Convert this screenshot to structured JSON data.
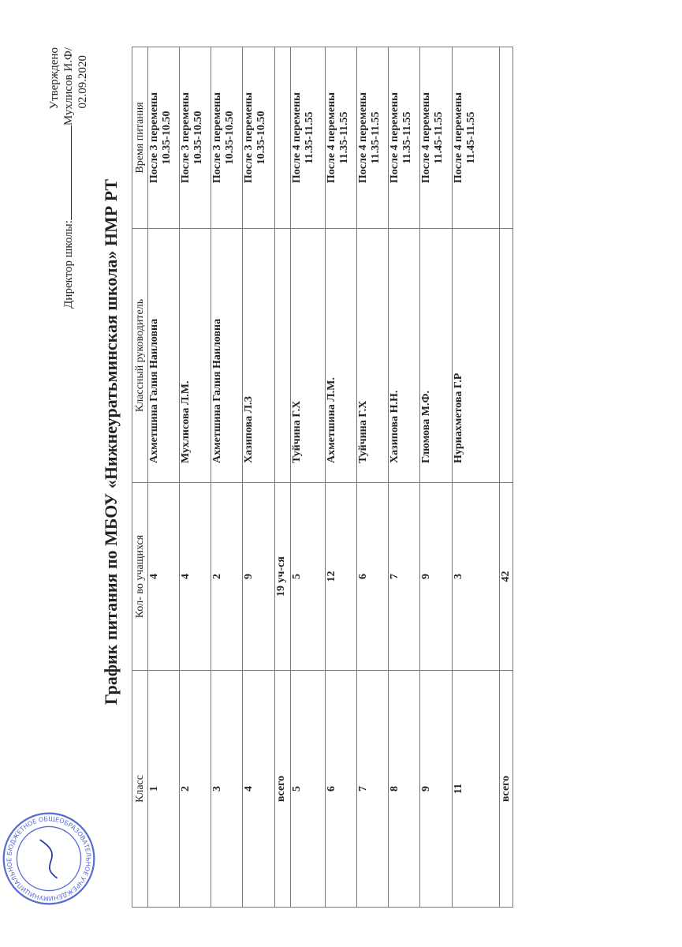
{
  "approval": {
    "approved": "Утверждено",
    "director_label": "Директор школы:",
    "director_name": "Мухлисов И.Ф/",
    "date": "02.09.2020"
  },
  "stamp": {
    "text": "МУНИЦИПАЛЬНОЕ БЮДЖЕТНОЕ ОБЩЕОБРАЗОВАТЕЛЬНОЕ УЧРЕЖДЕНИЕ",
    "color": "#3a52c8"
  },
  "title": "График питания по МБОУ «Нижнеуратьминская школа» НМР РТ",
  "table": {
    "headers": [
      "Класс",
      "Кол- во учащихся",
      "Классный руководитель",
      "Время питания"
    ],
    "rows": [
      {
        "cls": "1",
        "count": "4",
        "teacher": "Ахметшина Галия Наиловна",
        "time1": "После 3 перемены",
        "time2": "10.35-10.50"
      },
      {
        "cls": "2",
        "count": "4",
        "teacher": "Мухлисова Л.М.",
        "time1": "После 3 перемены",
        "time2": "10.35-10.50"
      },
      {
        "cls": "3",
        "count": "2",
        "teacher": "Ахметшина Галия Наиловна",
        "time1": "После 3 перемены",
        "time2": "10.35-10.50"
      },
      {
        "cls": "4",
        "count": "9",
        "teacher": "Хазипова Л.З",
        "time1": "После 3 перемены",
        "time2": "10.35-10.50"
      },
      {
        "cls": "всего",
        "count": "19 уч-ся",
        "teacher": "",
        "time1": "",
        "time2": ""
      },
      {
        "cls": "5",
        "count": "5",
        "teacher": "Туйчина Г.Х",
        "time1": "После 4 перемены",
        "time2": "11.35-11.55"
      },
      {
        "cls": "6",
        "count": "12",
        "teacher": "Ахметшина Л.М.",
        "time1": "После 4 перемены",
        "time2": "11.35-11.55"
      },
      {
        "cls": "7",
        "count": "6",
        "teacher": "Туйчина Г.Х",
        "time1": "После 4 перемены",
        "time2": "11.35-11.55"
      },
      {
        "cls": "8",
        "count": "7",
        "teacher": "Хазипова Н.Н.",
        "time1": "После 4 перемены",
        "time2": "11.35-11.55"
      },
      {
        "cls": "9",
        "count": "9",
        "teacher": "Глюмова М.Ф.",
        "time1": "После 4 перемены",
        "time2": "11.45-11.55"
      },
      {
        "cls": "11",
        "count": "3",
        "teacher": "Нуриахметова Г.Р",
        "time1": "После 4 перемены",
        "time2": "11.45-11.55"
      },
      {
        "cls": "всего",
        "count": "42",
        "teacher": "",
        "time1": "",
        "time2": ""
      }
    ]
  }
}
